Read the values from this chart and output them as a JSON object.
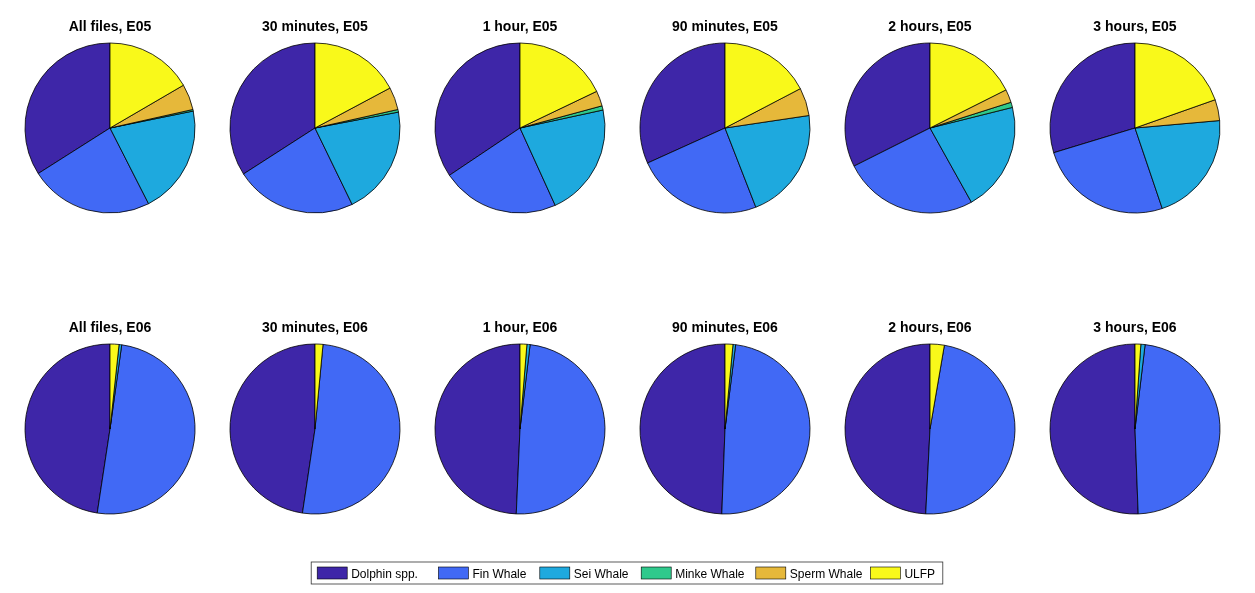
{
  "chart_data": [
    {
      "type": "pie",
      "title": "All files, E05",
      "categories": [
        "Dolphin spp.",
        "Fin Whale",
        "Sei Whale",
        "Minke Whale",
        "Sperm Whale",
        "ULFP"
      ],
      "values": [
        34,
        23.5,
        20.7,
        0.3,
        4.9,
        16.6
      ],
      "colors": [
        "#3e26a8",
        "#4169f5",
        "#1ea9de",
        "#2fc98c",
        "#e6b83a",
        "#f9f91a"
      ],
      "legend": "bottom"
    },
    {
      "type": "pie",
      "title": "30 minutes, E05",
      "values": [
        34.1,
        23.1,
        20.8,
        0.5,
        4.3,
        17.2
      ],
      "colors": [
        "#3e26a8",
        "#4169f5",
        "#1ea9de",
        "#2fc98c",
        "#e6b83a",
        "#f9f91a"
      ]
    },
    {
      "type": "pie",
      "title": "1 hour, E05",
      "values": [
        34.4,
        22.4,
        21.6,
        0.8,
        2.9,
        17.9
      ],
      "colors": [
        "#3e26a8",
        "#4169f5",
        "#1ea9de",
        "#2fc98c",
        "#e6b83a",
        "#f9f91a"
      ]
    },
    {
      "type": "pie",
      "title": "90 minutes, E05",
      "values": [
        31.7,
        24.1,
        21.4,
        null,
        5.3,
        17.3
      ],
      "colors": [
        "#3e26a8",
        "#4169f5",
        "#1ea9de",
        null,
        "#e6b83a",
        "#f9f91a"
      ]
    },
    {
      "type": "pie",
      "title": "2 hours, E05",
      "values": [
        32.4,
        25.7,
        20.8,
        1,
        2.5,
        17.6
      ],
      "colors": [
        "#3e26a8",
        "#4169f5",
        "#1ea9de",
        "#2fc98c",
        "#e6b83a",
        "#f9f91a"
      ]
    },
    {
      "type": "pie",
      "title": "3 hours, E05",
      "values": [
        29.7,
        25.5,
        21.2,
        4,
        19.6
      ],
      "colors": [
        "#3e26a8",
        "#4169f5",
        "#1ea9de",
        "#e6b83a",
        "#f9f91a"
      ]
    },
    {
      "type": "pie",
      "title": "All files, E06",
      "values": [
        47.6,
        50.2,
        0.5,
        1.7
      ],
      "colors": [
        "#3e26a8",
        "#4169f5",
        "#1ea9de",
        "#f9f91a"
      ]
    },
    {
      "type": "pie",
      "title": "30 minutes, E06",
      "values": [
        47.5,
        50.7,
        null,
        1.5
      ],
      "colors": [
        "#3e26a8",
        "#4169f5",
        null,
        "#f9f91a"
      ]
    },
    {
      "type": "pie",
      "title": "1 hour, E06",
      "values": [
        49.3,
        48.8,
        0.6,
        1.3
      ],
      "colors": [
        "#3e26a8",
        "#4169f5",
        "#1ea9de",
        "#f9f91a"
      ]
    },
    {
      "type": "pie",
      "title": "90 minutes, E06",
      "values": [
        49.4,
        48.6,
        0.5,
        1.5
      ],
      "colors": [
        "#3e26a8",
        "#4169f5",
        "#1ea9de",
        "#f9f91a"
      ]
    },
    {
      "type": "pie",
      "title": "2 hours, E06",
      "values": [
        49.1,
        48,
        null,
        2.7
      ],
      "colors": [
        "#3e26a8",
        "#4169f5",
        null,
        "#f9f91a"
      ]
    },
    {
      "type": "pie",
      "title": "3 hours, E06",
      "values": [
        50.6,
        47.5,
        0.8,
        1.1
      ],
      "colors": [
        "#3e26a8",
        "#4169f5",
        "#1ea9de",
        "#f9f91a"
      ]
    }
  ]
}
